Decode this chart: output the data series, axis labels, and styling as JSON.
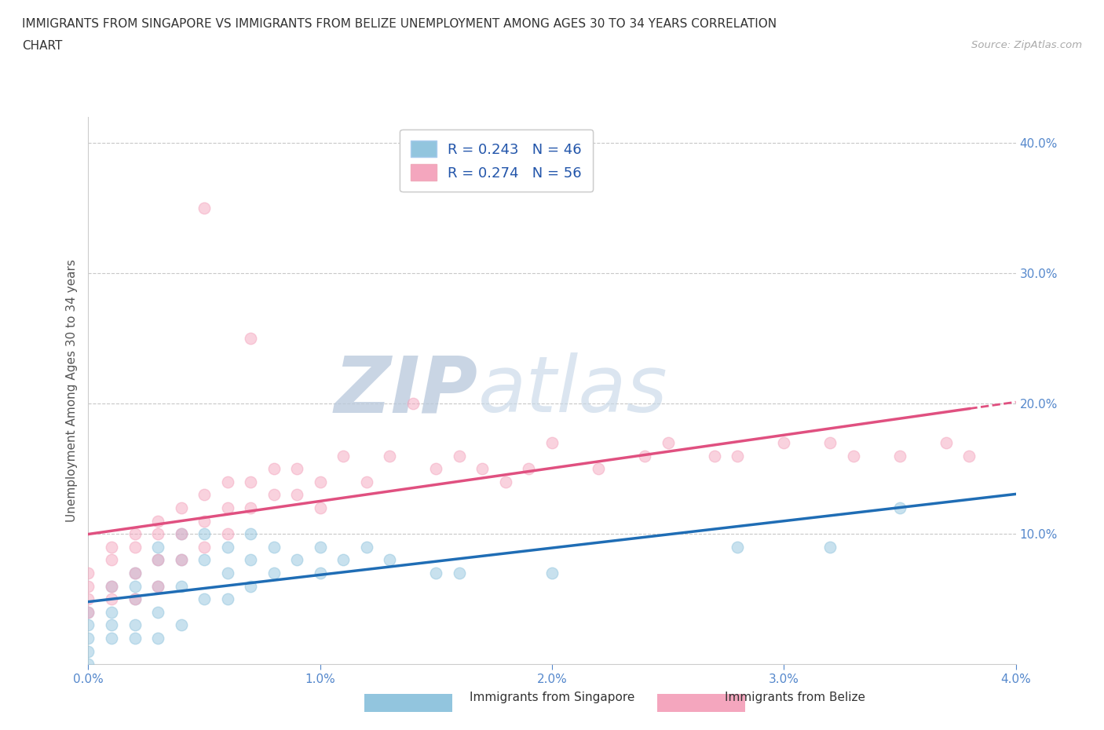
{
  "title_line1": "IMMIGRANTS FROM SINGAPORE VS IMMIGRANTS FROM BELIZE UNEMPLOYMENT AMONG AGES 30 TO 34 YEARS CORRELATION",
  "title_line2": "CHART",
  "source": "Source: ZipAtlas.com",
  "ylabel": "Unemployment Among Ages 30 to 34 years",
  "xlim": [
    0.0,
    0.04
  ],
  "ylim": [
    0.0,
    0.42
  ],
  "legend_singapore": "R = 0.243   N = 46",
  "legend_belize": "R = 0.274   N = 56",
  "color_singapore": "#92c5de",
  "color_belize": "#f4a6be",
  "color_line_singapore": "#1f6db5",
  "color_line_belize": "#e05080",
  "watermark_zip": "ZIP",
  "watermark_atlas": "atlas",
  "singapore_x": [
    0.0,
    0.0,
    0.0,
    0.0,
    0.0,
    0.001,
    0.001,
    0.001,
    0.001,
    0.002,
    0.002,
    0.002,
    0.002,
    0.002,
    0.003,
    0.003,
    0.003,
    0.003,
    0.003,
    0.004,
    0.004,
    0.004,
    0.004,
    0.005,
    0.005,
    0.005,
    0.006,
    0.006,
    0.006,
    0.007,
    0.007,
    0.007,
    0.008,
    0.008,
    0.009,
    0.01,
    0.01,
    0.011,
    0.012,
    0.013,
    0.015,
    0.016,
    0.02,
    0.028,
    0.032,
    0.035
  ],
  "singapore_y": [
    0.04,
    0.03,
    0.02,
    0.01,
    0.0,
    0.06,
    0.04,
    0.03,
    0.02,
    0.07,
    0.06,
    0.05,
    0.03,
    0.02,
    0.09,
    0.08,
    0.06,
    0.04,
    0.02,
    0.1,
    0.08,
    0.06,
    0.03,
    0.1,
    0.08,
    0.05,
    0.09,
    0.07,
    0.05,
    0.1,
    0.08,
    0.06,
    0.09,
    0.07,
    0.08,
    0.09,
    0.07,
    0.08,
    0.09,
    0.08,
    0.07,
    0.07,
    0.07,
    0.09,
    0.09,
    0.12
  ],
  "belize_x": [
    0.0,
    0.0,
    0.0,
    0.0,
    0.001,
    0.001,
    0.001,
    0.001,
    0.002,
    0.002,
    0.002,
    0.002,
    0.003,
    0.003,
    0.003,
    0.003,
    0.004,
    0.004,
    0.004,
    0.005,
    0.005,
    0.005,
    0.005,
    0.006,
    0.006,
    0.006,
    0.007,
    0.007,
    0.007,
    0.008,
    0.008,
    0.009,
    0.009,
    0.01,
    0.01,
    0.011,
    0.012,
    0.013,
    0.014,
    0.015,
    0.016,
    0.017,
    0.018,
    0.019,
    0.02,
    0.022,
    0.024,
    0.025,
    0.027,
    0.028,
    0.03,
    0.032,
    0.033,
    0.035,
    0.037,
    0.038
  ],
  "belize_y": [
    0.07,
    0.06,
    0.05,
    0.04,
    0.09,
    0.08,
    0.06,
    0.05,
    0.1,
    0.09,
    0.07,
    0.05,
    0.11,
    0.1,
    0.08,
    0.06,
    0.12,
    0.1,
    0.08,
    0.35,
    0.13,
    0.11,
    0.09,
    0.14,
    0.12,
    0.1,
    0.25,
    0.14,
    0.12,
    0.15,
    0.13,
    0.15,
    0.13,
    0.14,
    0.12,
    0.16,
    0.14,
    0.16,
    0.2,
    0.15,
    0.16,
    0.15,
    0.14,
    0.15,
    0.17,
    0.15,
    0.16,
    0.17,
    0.16,
    0.16,
    0.17,
    0.17,
    0.16,
    0.16,
    0.17,
    0.16
  ],
  "legend1_bottom": "Immigrants from Singapore",
  "legend2_bottom": "Immigrants from Belize"
}
